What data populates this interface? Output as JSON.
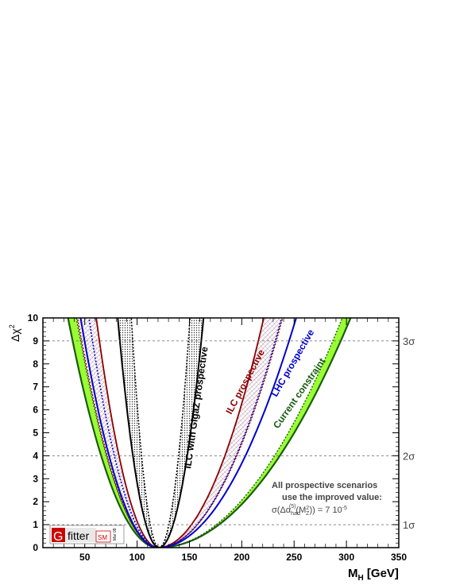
{
  "chart_data": {
    "type": "line",
    "xlabel_main": "M",
    "xlabel_sub": "H",
    "xlabel_unit": " [GeV]",
    "ylabel_main": "Δχ",
    "ylabel_sup": "2",
    "xlim": [
      10,
      350
    ],
    "ylim": [
      0,
      10
    ],
    "x_ticks": [
      50,
      100,
      150,
      200,
      250,
      300,
      350
    ],
    "y_ticks": [
      0,
      1,
      2,
      3,
      4,
      5,
      6,
      7,
      8,
      9,
      10
    ],
    "sigma_lines": [
      {
        "y": 1,
        "label": "1σ"
      },
      {
        "y": 4,
        "label": "2σ"
      },
      {
        "y": 9,
        "label": "3σ"
      }
    ],
    "series": [
      {
        "name": "Current constraint",
        "min_x": 120,
        "x_at_delta_chi2_10": [
          38,
          300
        ],
        "band_width_at_delta_chi2_10": 8,
        "color": "#99ff33",
        "edge_color": "#1a5c10"
      },
      {
        "name": "LHC prospective",
        "min_x": 120,
        "x_at_delta_chi2_10": [
          46,
          252
        ],
        "color": "#0000cc"
      },
      {
        "name": "ILC prospective",
        "min_x": 120,
        "x_at_delta_chi2_10": [
          52,
          230
        ],
        "band_width_at_delta_chi2_10": 18,
        "color": "#8b0000"
      },
      {
        "name": "ILC with GigaZ prospective",
        "min_x": 121,
        "x_at_delta_chi2_10": [
          88,
          157
        ],
        "band_width_at_delta_chi2_10": 13,
        "color": "#000000"
      }
    ],
    "annotations": {
      "scenario_line1": "All prospective scenarios",
      "scenario_line2": "use the improved value:",
      "formula": "σ(Δα(5)had(M2Z)) = 7 10-5"
    },
    "logo": {
      "letter": "G",
      "word": "fitter",
      "suffix": "SM",
      "date": "Mar 09"
    }
  }
}
